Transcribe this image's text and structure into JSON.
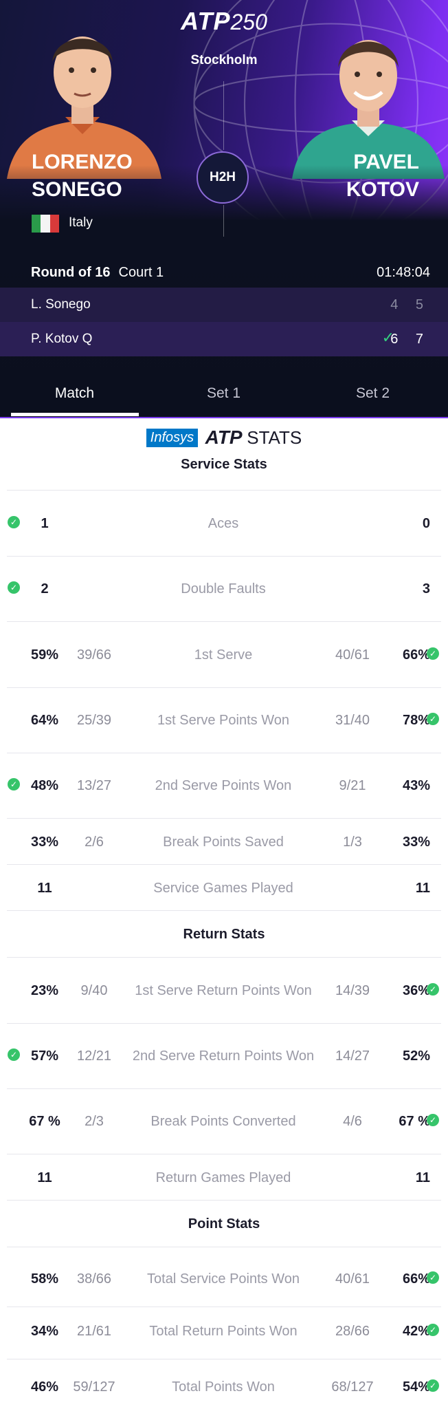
{
  "header": {
    "logo_atp": "ATP",
    "logo_num": "250",
    "city": "Stockholm",
    "h2h_label": "H2H",
    "player1": {
      "first": "LORENZO",
      "last": "SONEGO",
      "country": "Italy"
    },
    "player2": {
      "first": "PAVEL",
      "last": "KOTOV"
    },
    "round": "Round of 16",
    "court": "Court 1",
    "duration": "01:48:04"
  },
  "score": {
    "rows": [
      {
        "name": "L. Sonego",
        "sets": "4 5"
      },
      {
        "name": "P. Kotov  Q",
        "sets": "6 7"
      }
    ]
  },
  "tabs": [
    "Match",
    "Set 1",
    "Set 2"
  ],
  "brand": {
    "infosys": "Infosys",
    "atp": "ATP",
    "stats": "STATS"
  },
  "sections": {
    "service": "Service Stats",
    "return": "Return Stats",
    "point": "Point Stats"
  },
  "stats": {
    "service": [
      {
        "label": "Aces",
        "lp": "1",
        "lf": "",
        "rf": "",
        "rp": "0"
      },
      {
        "label": "Double Faults",
        "lp": "2",
        "lf": "",
        "rf": "",
        "rp": "3"
      },
      {
        "label": "1st Serve",
        "lp": "59%",
        "lf": "39/66",
        "rf": "40/61",
        "rp": "66%"
      },
      {
        "label": "1st Serve Points Won",
        "lp": "64%",
        "lf": "25/39",
        "rf": "31/40",
        "rp": "78%"
      },
      {
        "label": "2nd Serve Points Won",
        "lp": "48%",
        "lf": "13/27",
        "rf": "9/21",
        "rp": "43%"
      },
      {
        "label": "Break Points Saved",
        "lp": "33%",
        "lf": "2/6",
        "rf": "1/3",
        "rp": "33%"
      },
      {
        "label": "Service Games Played",
        "lp": "11",
        "lf": "",
        "rf": "",
        "rp": "11"
      }
    ],
    "return": [
      {
        "label": "1st Serve Return Points Won",
        "lp": "23%",
        "lf": "9/40",
        "rf": "14/39",
        "rp": "36%"
      },
      {
        "label": "2nd Serve Return Points Won",
        "lp": "57%",
        "lf": "12/21",
        "rf": "14/27",
        "rp": "52%"
      },
      {
        "label": "Break Points Converted",
        "lp": "67 %",
        "lf": "2/3",
        "rf": "4/6",
        "rp": "67 %"
      },
      {
        "label": "Return Games Played",
        "lp": "11",
        "lf": "",
        "rf": "",
        "rp": "11"
      }
    ],
    "point": [
      {
        "label": "Total Service Points Won",
        "lp": "58%",
        "lf": "38/66",
        "rf": "40/61",
        "rp": "66%"
      },
      {
        "label": "Total Return Points Won",
        "lp": "34%",
        "lf": "21/61",
        "rf": "28/66",
        "rp": "42%"
      },
      {
        "label": "Total Points Won",
        "lp": "46%",
        "lf": "59/127",
        "rf": "68/127",
        "rp": "54%"
      }
    ]
  },
  "colors": {
    "accent": "#7b3cf0",
    "win_dot": "#36c46a"
  }
}
